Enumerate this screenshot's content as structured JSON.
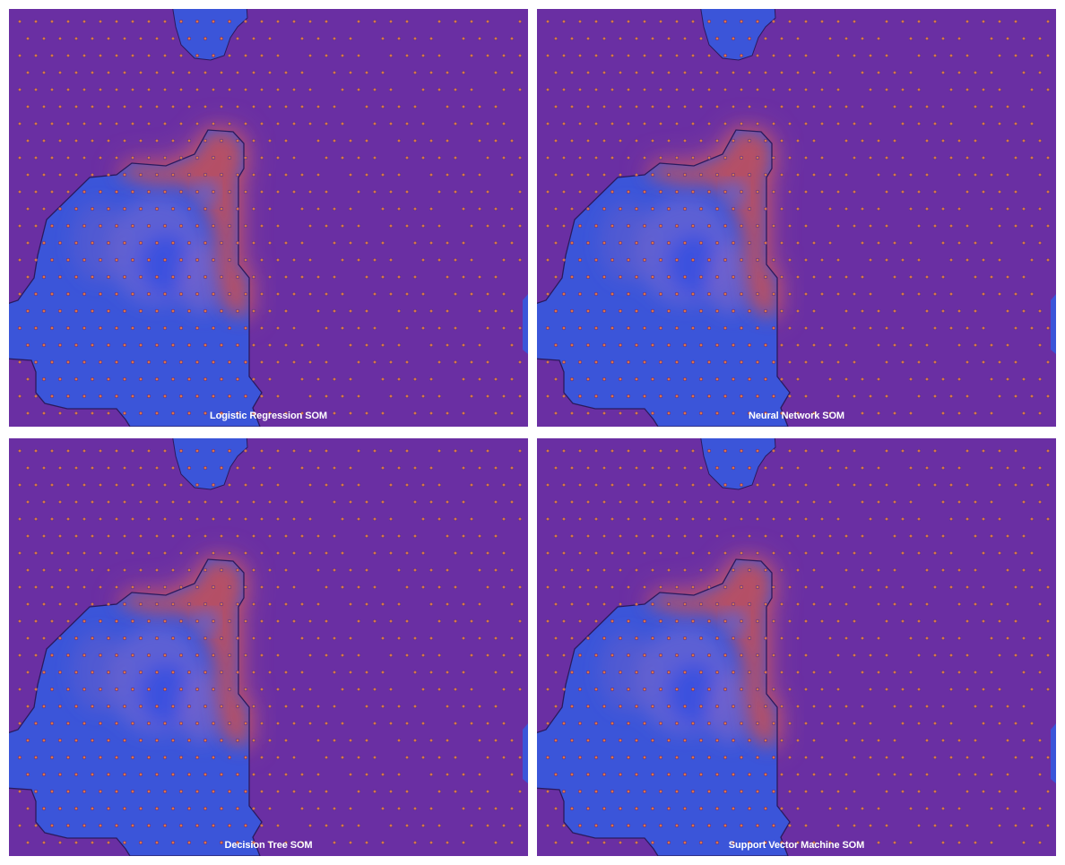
{
  "colors": {
    "background": "#6a2fa3",
    "blue_region": "#3b55d9",
    "red_region": "#c2505a",
    "boundary": "#2b1a5e",
    "node": "#d9734a",
    "node_ring": "#4a2a90"
  },
  "panels": [
    {
      "id": "logistic",
      "title": "Logistic Regression SOM"
    },
    {
      "id": "neural",
      "title": "Neural Network SOM"
    },
    {
      "id": "tree",
      "title": "Decision Tree SOM"
    },
    {
      "id": "svm",
      "title": "Support Vector Machine SOM"
    }
  ]
}
